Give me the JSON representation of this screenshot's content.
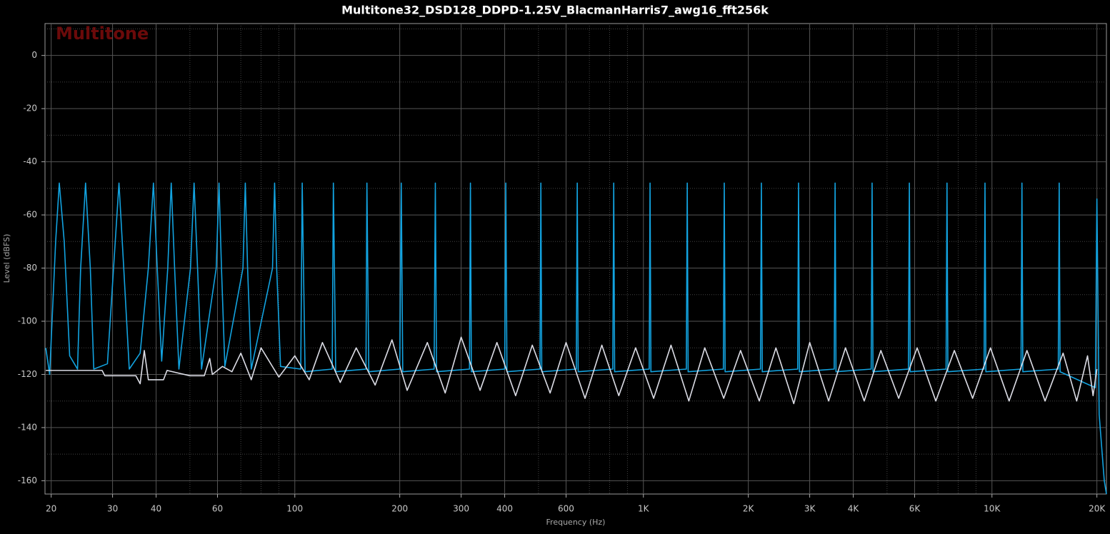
{
  "chart_data": {
    "type": "line",
    "title": "Multitone32_DSD128_DDPD-1.25V_BlacmanHarris7_awg16_fft256k",
    "watermark": "Multitone",
    "x_label": "Frequency (Hz)",
    "y_label": "Level (dBFS)",
    "xscale": "log",
    "grid": true,
    "xlim": [
      19.2,
      21300
    ],
    "ylim": [
      -165,
      12
    ],
    "xticks": [
      20,
      30,
      40,
      60,
      100,
      200,
      300,
      400,
      600,
      {
        "value": 1000,
        "label": "1K"
      },
      {
        "value": 2000,
        "label": "2K"
      },
      {
        "value": 3000,
        "label": "3K"
      },
      {
        "value": 4000,
        "label": "4K"
      },
      {
        "value": 6000,
        "label": "6K"
      },
      {
        "value": 10000,
        "label": "10K"
      },
      {
        "value": 20000,
        "label": "20K"
      }
    ],
    "x_minor_ticks": [
      50,
      70,
      80,
      90,
      500,
      700,
      800,
      900,
      5000,
      7000,
      8000,
      9000
    ],
    "yticks": [
      0,
      -20,
      -40,
      -60,
      -80,
      -100,
      -120,
      -140,
      -160
    ],
    "y_minor_ticks": [
      10,
      -10,
      -30,
      -50,
      -70,
      -90,
      -110,
      -130,
      -150
    ],
    "series": [
      {
        "color": "#12a3e0",
        "x": [
          19.3,
          19.8,
          20.6,
          21.1,
          21.8,
          22.6,
          23.8,
          24.3,
          25.1,
          25.9,
          26.5,
          29,
          30.2,
          31.3,
          32.3,
          33.5,
          36,
          38,
          39.3,
          40.3,
          41.5,
          43.2,
          44.2,
          45.2,
          46.5,
          50.2,
          51.4,
          52.6,
          54,
          59.5,
          60.6,
          61.6,
          63,
          71,
          72.1,
          73.2,
          75,
          86.3,
          87.5,
          88.7,
          91,
          104,
          105,
          107,
          128,
          129,
          131,
          160,
          161,
          163,
          200,
          202,
          204,
          251,
          253,
          255,
          317,
          319,
          321,
          400,
          403,
          406,
          505,
          508,
          511,
          642,
          646,
          650,
          817,
          822,
          827,
          1039,
          1045,
          1051,
          1328,
          1336,
          1344,
          1696,
          1706,
          1716,
          2167,
          2180,
          2193,
          2771,
          2787,
          2803,
          3527,
          3548,
          3569,
          4503,
          4530,
          4557,
          5759,
          5794,
          5829,
          7386,
          7430,
          7475,
          9493,
          9550,
          9607,
          12117,
          12190,
          12263,
          15497,
          15590,
          15684,
          19800,
          20000,
          20300,
          21000,
          21300
        ],
        "values": [
          -110,
          -120,
          -70,
          -48,
          -70,
          -113,
          -118,
          -80,
          -48,
          -80,
          -118,
          -116,
          -80,
          -48,
          -80,
          -118,
          -112,
          -80,
          -48,
          -80,
          -115,
          -80,
          -48,
          -80,
          -118,
          -80,
          -48,
          -80,
          -118,
          -80,
          -48,
          -80,
          -117,
          -80,
          -48,
          -80,
          -118,
          -80,
          -48,
          -80,
          -117,
          -118,
          -48,
          -119,
          -118,
          -48,
          -119,
          -118,
          -48,
          -119,
          -118,
          -48,
          -119,
          -118,
          -48,
          -119,
          -118,
          -48,
          -119,
          -118,
          -48,
          -119,
          -118,
          -48,
          -119,
          -118,
          -48,
          -119,
          -118,
          -48,
          -119,
          -118,
          -48,
          -119,
          -118,
          -48,
          -119,
          -118,
          -48,
          -119,
          -118,
          -48,
          -119,
          -118,
          -48,
          -119,
          -118,
          -48,
          -119,
          -118,
          -48,
          -119,
          -118,
          -48,
          -119,
          -118,
          -48,
          -119,
          -118,
          -48,
          -119,
          -118,
          -48,
          -119,
          -118,
          -48,
          -119,
          -125,
          -54,
          -135,
          -160,
          -165
        ]
      },
      {
        "color": "#dcdde6",
        "x": [
          19.3,
          28,
          28.5,
          35,
          36,
          37,
          38,
          42,
          43,
          50,
          55,
          57,
          58,
          62,
          66,
          70,
          75,
          80,
          90,
          100,
          110,
          120,
          135,
          150,
          170,
          190,
          210,
          240,
          270,
          300,
          340,
          380,
          430,
          480,
          540,
          600,
          680,
          760,
          850,
          950,
          1070,
          1200,
          1350,
          1500,
          1700,
          1900,
          2150,
          2400,
          2700,
          3000,
          3400,
          3800,
          4300,
          4800,
          5400,
          6100,
          6900,
          7800,
          8800,
          9900,
          11200,
          12600,
          14200,
          16000,
          17500,
          18800,
          19500,
          20000
        ],
        "values": [
          -118.5,
          -118.5,
          -120.5,
          -120.5,
          -123.5,
          -111,
          -122,
          -122,
          -118.5,
          -120.5,
          -120.5,
          -114,
          -120,
          -117,
          -119,
          -112,
          -122,
          -110,
          -121,
          -113,
          -122,
          -108,
          -123,
          -110,
          -124,
          -107,
          -126,
          -108,
          -127,
          -106,
          -126,
          -108,
          -128,
          -109,
          -127,
          -108,
          -129,
          -109,
          -128,
          -110,
          -129,
          -109,
          -130,
          -110,
          -129,
          -111,
          -130,
          -110,
          -131,
          -108,
          -130,
          -110,
          -130,
          -111,
          -129,
          -110,
          -130,
          -111,
          -129,
          -110,
          -130,
          -111,
          -130,
          -112,
          -130,
          -113,
          -128,
          -118
        ]
      }
    ]
  }
}
